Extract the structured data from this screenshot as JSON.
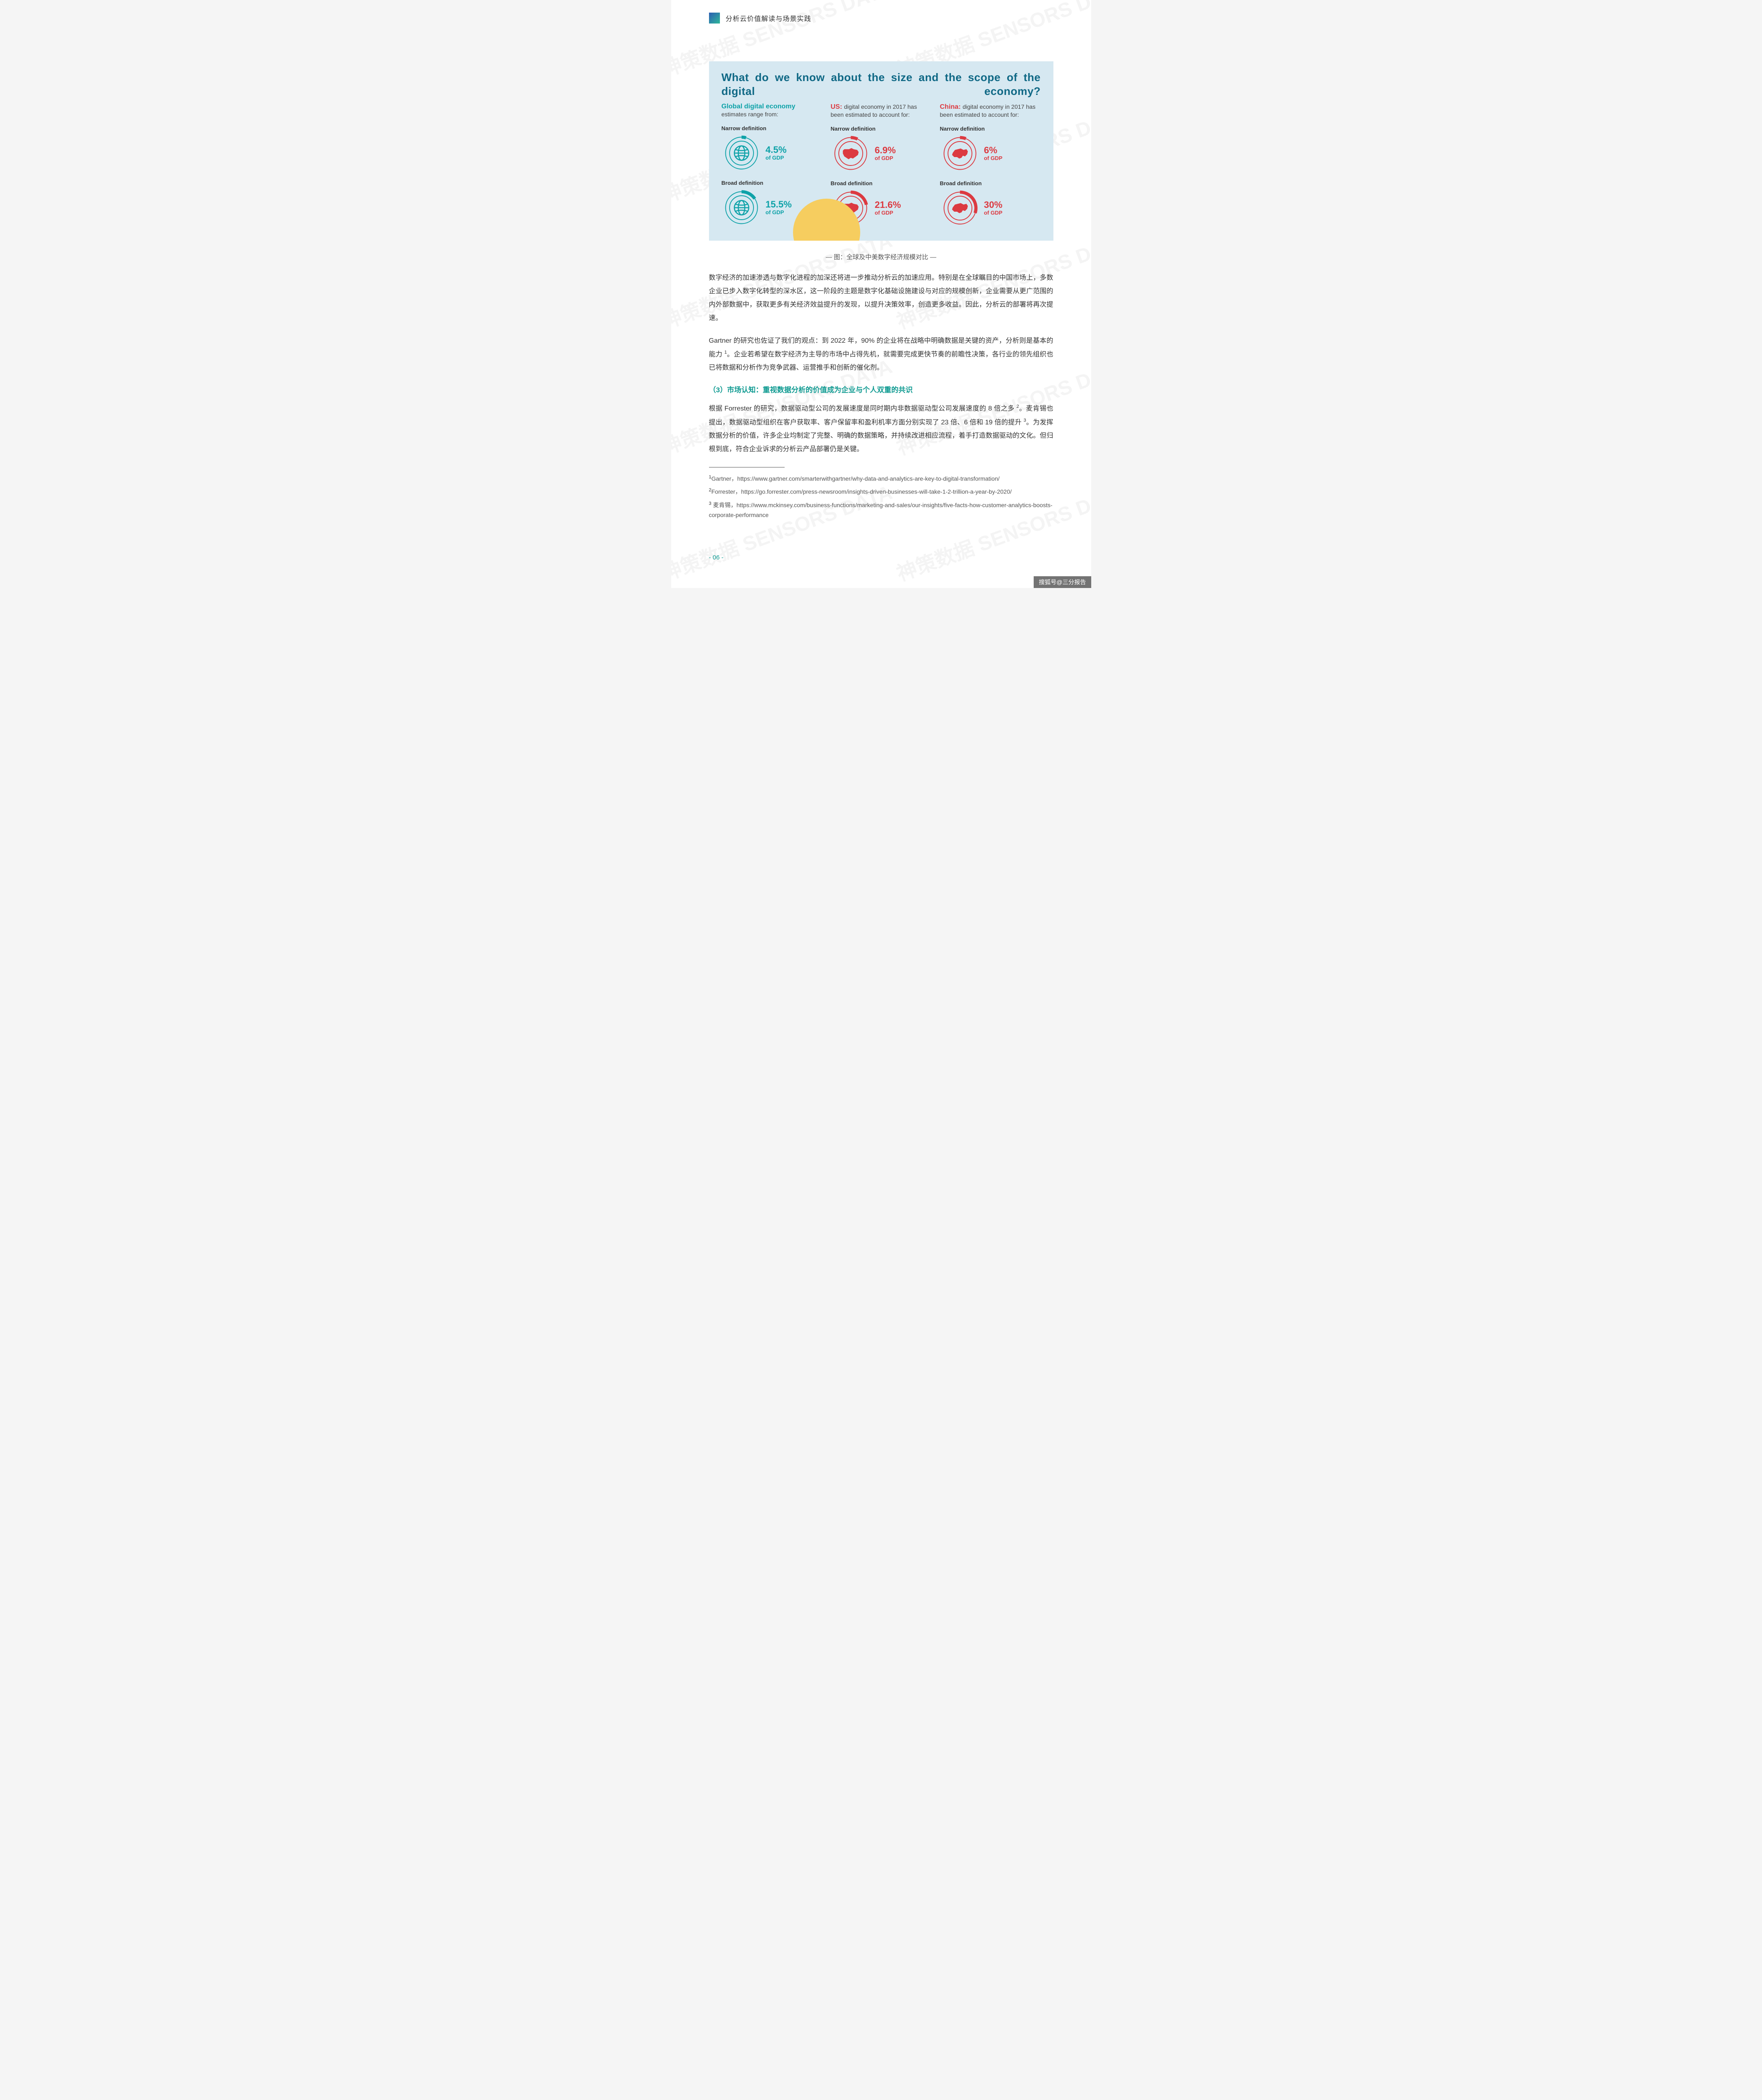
{
  "header": {
    "title": "分析云价值解读与场景实践"
  },
  "infographic": {
    "background_color": "#d6e8f1",
    "title": "What do we know about the size and the scope of the digital economy?",
    "title_color": "#0f6885",
    "of_gdp_label": "of GDP",
    "narrow_label": "Narrow definition",
    "broad_label": "Broad definition",
    "sun_color": "#f6cd5f",
    "columns": [
      {
        "id": "global",
        "head_bold": "Global digital economy",
        "head_rest": "estimates range from:",
        "accent": "#0ea2a8",
        "ring_outline": "#0ea2a8",
        "icon": "globe",
        "narrow": {
          "pct": "4.5%",
          "fraction": 0.045
        },
        "broad": {
          "pct": "15.5%",
          "fraction": 0.155
        }
      },
      {
        "id": "us",
        "head_bold": "US:",
        "head_rest": "digital economy in 2017 has been estimated to account for:",
        "accent": "#dc3a41",
        "ring_outline": "#dc3a41",
        "icon": "us",
        "narrow": {
          "pct": "6.9%",
          "fraction": 0.069
        },
        "broad": {
          "pct": "21.6%",
          "fraction": 0.216
        }
      },
      {
        "id": "china",
        "head_bold": "China:",
        "head_rest": "digital economy in 2017 has been estimated to account for:",
        "accent": "#dc3a41",
        "ring_outline": "#dc3a41",
        "icon": "china",
        "narrow": {
          "pct": "6%",
          "fraction": 0.06
        },
        "broad": {
          "pct": "30%",
          "fraction": 0.3
        }
      }
    ]
  },
  "caption": "— 图：全球及中美数字经济规模对比 —",
  "paragraphs": {
    "p1": "数字经济的加速渗透与数字化进程的加深还将进一步推动分析云的加速应用。特别是在全球瞩目的中国市场上，多数企业已步入数字化转型的深水区，这一阶段的主题是数字化基础设施建设与对应的规模创新，企业需要从更广范围的内外部数据中，获取更多有关经济效益提升的发现，以提升决策效率，创造更多收益。因此，分析云的部署将再次提速。",
    "p2_a": "Gartner 的研究也佐证了我们的观点：到 2022 年，90% 的企业将在战略中明确数据是关键的资产，分析则是基本的能力 ",
    "p2_sup": "1",
    "p2_b": "。企业若希望在数字经济为主导的市场中占得先机，就需要完成更快节奏的前瞻性决策，各行业的领先组织也已将数据和分析作为竞争武器、运营推手和创新的催化剂。",
    "h3": "（3）市场认知：重视数据分析的价值成为企业与个人双重的共识",
    "p3_a": "根据 Forrester 的研究，数据驱动型公司的发展速度是同时期内非数据驱动型公司发展速度的 8 倍之多 ",
    "p3_sup1": "2",
    "p3_b": "。麦肯锡也提出，数据驱动型组织在客户获取率、客户保留率和盈利机率方面分别实现了 23 倍、6 倍和 19 倍的提升 ",
    "p3_sup2": "3",
    "p3_c": "。为发挥数据分析的价值，许多企业均制定了完整、明确的数据策略，并持续改进相应流程，着手打造数据驱动的文化。但归根到底，符合企业诉求的分析云产品部署仍是关键。"
  },
  "footnotes": [
    {
      "sup": "1",
      "text": "Gartner，https://www.gartner.com/smarterwithgartner/why-data-and-analytics-are-key-to-digital-transformation/"
    },
    {
      "sup": "2",
      "text": "Forrester，https://go.forrester.com/press-newsroom/insights-driven-businesses-will-take-1-2-trillion-a-year-by-2020/"
    },
    {
      "sup": "3",
      "text": " 麦肯锡，https://www.mckinsey.com/business-functions/marketing-and-sales/our-insights/five-facts-how-customer-analytics-boosts-corporate-performance"
    }
  ],
  "page_number": "- 06 -",
  "source_tag": "搜狐号@三分报告",
  "watermark_text": "神策数据 SENSORS DATA"
}
